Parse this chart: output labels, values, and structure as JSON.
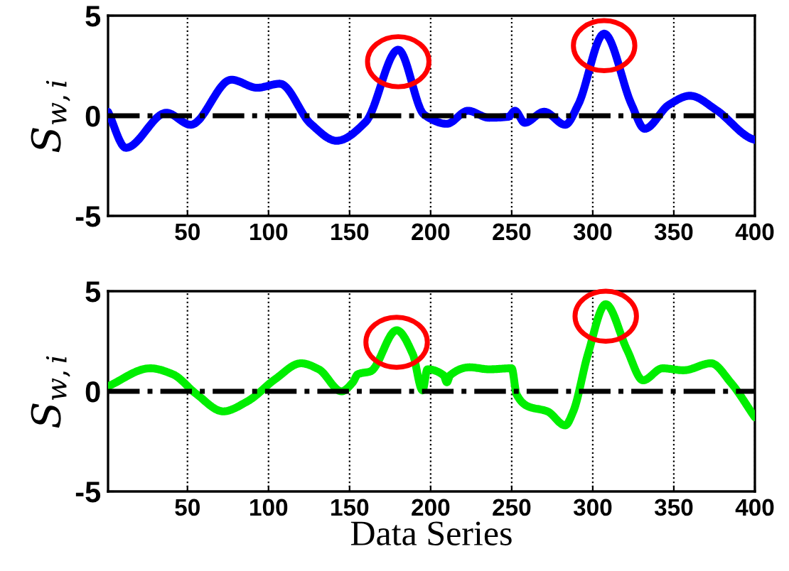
{
  "chart_data": [
    {
      "type": "line",
      "ylabel": "S$_{w,i}$",
      "x": [
        1,
        12,
        37,
        52,
        77,
        93,
        107,
        126,
        142,
        160,
        180,
        196,
        210,
        223,
        236,
        248,
        252,
        258,
        270,
        283,
        291,
        307,
        324,
        332,
        347,
        360,
        376,
        398,
        400
      ],
      "series": [
        {
          "color": "#0000ff",
          "values": [
            0.2,
            -1.6,
            0.15,
            -0.45,
            1.8,
            1.4,
            1.6,
            -0.4,
            -1.25,
            -0.3,
            3.3,
            0.05,
            -0.4,
            0.25,
            -0.1,
            -0.05,
            0.25,
            -0.35,
            0.2,
            -0.45,
            0.55,
            4.1,
            0.55,
            -0.65,
            0.55,
            1.0,
            0.3,
            -1.15,
            -1.2
          ]
        }
      ],
      "xlim": [
        1,
        400
      ],
      "ylim": [
        -5,
        5
      ],
      "xticks": [
        50,
        100,
        150,
        200,
        250,
        300,
        350,
        400
      ],
      "yticks": [
        -5,
        0,
        5
      ],
      "grid": "x",
      "line_style": "solid",
      "ref_lines": [
        {
          "axis": "y",
          "value": 0,
          "color": "#000000",
          "line_style": "dashdot"
        }
      ]
    },
    {
      "type": "line",
      "ylabel": "S$_{w,i}$",
      "xlabel": "Data Series",
      "x": [
        1,
        27,
        41,
        55,
        72,
        87,
        104,
        120,
        131,
        145,
        152,
        155,
        163,
        179,
        189,
        195,
        198,
        208,
        210,
        212,
        224,
        236,
        250,
        253,
        260,
        272,
        283,
        288,
        297,
        308,
        321,
        331,
        343,
        356,
        373,
        385,
        400
      ],
      "series": [
        {
          "color": "#00ee00",
          "values": [
            0.25,
            1.15,
            0.85,
            -0.1,
            -1.0,
            -0.5,
            0.6,
            1.4,
            1.1,
            0,
            0.45,
            0.85,
            1.0,
            3.05,
            1.85,
            0.05,
            1.1,
            0.8,
            0.45,
            0.8,
            1.2,
            1.1,
            1.15,
            -0.15,
            -0.75,
            -1.0,
            -1.7,
            -1.0,
            1.85,
            4.35,
            2.1,
            0.55,
            1.15,
            1.05,
            1.4,
            0.45,
            -1.3
          ]
        }
      ],
      "xlim": [
        1,
        400
      ],
      "ylim": [
        -5,
        5
      ],
      "xticks": [
        50,
        100,
        150,
        200,
        250,
        300,
        350,
        400
      ],
      "yticks": [
        -5,
        0,
        5
      ],
      "grid": "x",
      "line_style": "solid",
      "ref_lines": [
        {
          "axis": "y",
          "value": 0,
          "color": "#000000",
          "line_style": "dashdot"
        }
      ]
    }
  ]
}
